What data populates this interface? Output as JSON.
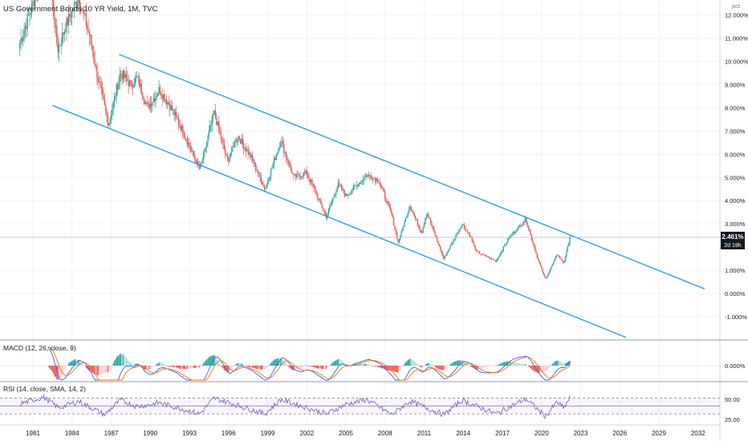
{
  "header": {
    "title": "US Government Bonds 10 YR Yield, 1M, TVC"
  },
  "price_axis": {
    "unit": "pct",
    "current_price": "2.461%",
    "countdown": "2d 19h"
  },
  "macd_panel": {
    "label": "MACD (12, 26, close, 9)",
    "zero_label": "0.000%"
  },
  "rsi_panel": {
    "label": "RSI (14, close, SMA, 14, 2)",
    "levels": [
      "50.00",
      "25.00"
    ]
  },
  "time_axis": {
    "labels": [
      "1981",
      "1984",
      "1987",
      "1990",
      "1993",
      "1996",
      "1999",
      "2002",
      "2005",
      "2008",
      "2011",
      "2014",
      "2017",
      "2020",
      "2023",
      "2026",
      "2029",
      "2032"
    ]
  },
  "colors": {
    "up": "#26a69a",
    "down": "#ef5350",
    "channel": "#2196f3",
    "macd_line": "#2962ff",
    "signal_line": "#ff6d00",
    "rsi_line": "#7e57c2",
    "axis_text": "#131722"
  },
  "chart_data": [
    {
      "type": "candlestick",
      "title": "US Government Bonds 10 YR Yield, 1M, TVC",
      "y_unit": "pct",
      "ylim": [
        -1.0,
        12.0
      ],
      "y_ticks": [
        "12.000%",
        "11.000%",
        "10.000%",
        "9.000%",
        "8.000%",
        "7.000%",
        "6.000%",
        "5.000%",
        "4.000%",
        "3.000%",
        "1.000%",
        "0.000%",
        "-1.000%"
      ],
      "x_ticks": [
        "1981",
        "1984",
        "1987",
        "1990",
        "1993",
        "1996",
        "1999",
        "2002",
        "2005",
        "2008",
        "2011",
        "2014",
        "2017",
        "2020",
        "2023",
        "2026",
        "2029",
        "2032"
      ],
      "last_value": 2.461,
      "approx_close_path": [
        {
          "year": 1980.0,
          "v": 10.8
        },
        {
          "year": 1981.0,
          "v": 12.5
        },
        {
          "year": 1981.8,
          "v": 13.8
        },
        {
          "year": 1982.4,
          "v": 13.0
        },
        {
          "year": 1982.9,
          "v": 10.5
        },
        {
          "year": 1983.5,
          "v": 11.5
        },
        {
          "year": 1984.5,
          "v": 12.8
        },
        {
          "year": 1985.4,
          "v": 11.0
        },
        {
          "year": 1986.0,
          "v": 9.2
        },
        {
          "year": 1986.8,
          "v": 7.3
        },
        {
          "year": 1987.7,
          "v": 9.5
        },
        {
          "year": 1988.5,
          "v": 9.0
        },
        {
          "year": 1989.0,
          "v": 9.3
        },
        {
          "year": 1989.8,
          "v": 8.0
        },
        {
          "year": 1990.7,
          "v": 8.8
        },
        {
          "year": 1991.6,
          "v": 8.0
        },
        {
          "year": 1992.5,
          "v": 7.0
        },
        {
          "year": 1993.8,
          "v": 5.3
        },
        {
          "year": 1994.9,
          "v": 7.8
        },
        {
          "year": 1995.9,
          "v": 5.7
        },
        {
          "year": 1996.7,
          "v": 6.8
        },
        {
          "year": 1997.8,
          "v": 5.8
        },
        {
          "year": 1998.8,
          "v": 4.5
        },
        {
          "year": 2000.0,
          "v": 6.6
        },
        {
          "year": 2001.0,
          "v": 5.0
        },
        {
          "year": 2002.0,
          "v": 5.2
        },
        {
          "year": 2003.5,
          "v": 3.3
        },
        {
          "year": 2004.4,
          "v": 4.7
        },
        {
          "year": 2005.0,
          "v": 4.2
        },
        {
          "year": 2006.6,
          "v": 5.1
        },
        {
          "year": 2007.5,
          "v": 4.9
        },
        {
          "year": 2008.5,
          "v": 3.4
        },
        {
          "year": 2009.0,
          "v": 2.2
        },
        {
          "year": 2009.9,
          "v": 3.8
        },
        {
          "year": 2010.8,
          "v": 2.6
        },
        {
          "year": 2011.2,
          "v": 3.5
        },
        {
          "year": 2012.5,
          "v": 1.5
        },
        {
          "year": 2013.9,
          "v": 3.0
        },
        {
          "year": 2014.5,
          "v": 2.5
        },
        {
          "year": 2015.0,
          "v": 1.8
        },
        {
          "year": 2016.5,
          "v": 1.4
        },
        {
          "year": 2017.5,
          "v": 2.4
        },
        {
          "year": 2018.8,
          "v": 3.2
        },
        {
          "year": 2019.7,
          "v": 1.5
        },
        {
          "year": 2020.3,
          "v": 0.6
        },
        {
          "year": 2021.2,
          "v": 1.7
        },
        {
          "year": 2021.7,
          "v": 1.3
        },
        {
          "year": 2022.2,
          "v": 2.461
        }
      ],
      "channel": {
        "upper": [
          {
            "year": 1987.6,
            "v": 10.3
          },
          {
            "year": 2032.5,
            "v": 0.2
          }
        ],
        "lower": [
          {
            "year": 1982.5,
            "v": 8.1
          },
          {
            "year": 2026.5,
            "v": -1.9
          }
        ]
      }
    },
    {
      "type": "macd",
      "params": "12, 26, close, 9",
      "zero_label": "0.000%"
    },
    {
      "type": "line",
      "name": "RSI",
      "params": "14, close, SMA, 14, 2",
      "levels": [
        70,
        50,
        30
      ],
      "y_tick_labels": [
        "50.00",
        "25.00"
      ],
      "approx_values": [
        {
          "year": 1980.0,
          "v": 55
        },
        {
          "year": 1981.8,
          "v": 72
        },
        {
          "year": 1983.0,
          "v": 45
        },
        {
          "year": 1984.5,
          "v": 62
        },
        {
          "year": 1986.5,
          "v": 28
        },
        {
          "year": 1987.7,
          "v": 65
        },
        {
          "year": 1989.0,
          "v": 48
        },
        {
          "year": 1990.7,
          "v": 58
        },
        {
          "year": 1993.8,
          "v": 30
        },
        {
          "year": 1994.9,
          "v": 70
        },
        {
          "year": 1998.8,
          "v": 30
        },
        {
          "year": 2000.0,
          "v": 66
        },
        {
          "year": 2003.5,
          "v": 30
        },
        {
          "year": 2005.0,
          "v": 54
        },
        {
          "year": 2006.6,
          "v": 66
        },
        {
          "year": 2008.5,
          "v": 28
        },
        {
          "year": 2009.9,
          "v": 62
        },
        {
          "year": 2012.5,
          "v": 28
        },
        {
          "year": 2013.9,
          "v": 64
        },
        {
          "year": 2016.5,
          "v": 30
        },
        {
          "year": 2018.8,
          "v": 68
        },
        {
          "year": 2020.3,
          "v": 24
        },
        {
          "year": 2021.2,
          "v": 60
        },
        {
          "year": 2021.7,
          "v": 44
        },
        {
          "year": 2022.2,
          "v": 72
        }
      ]
    }
  ]
}
